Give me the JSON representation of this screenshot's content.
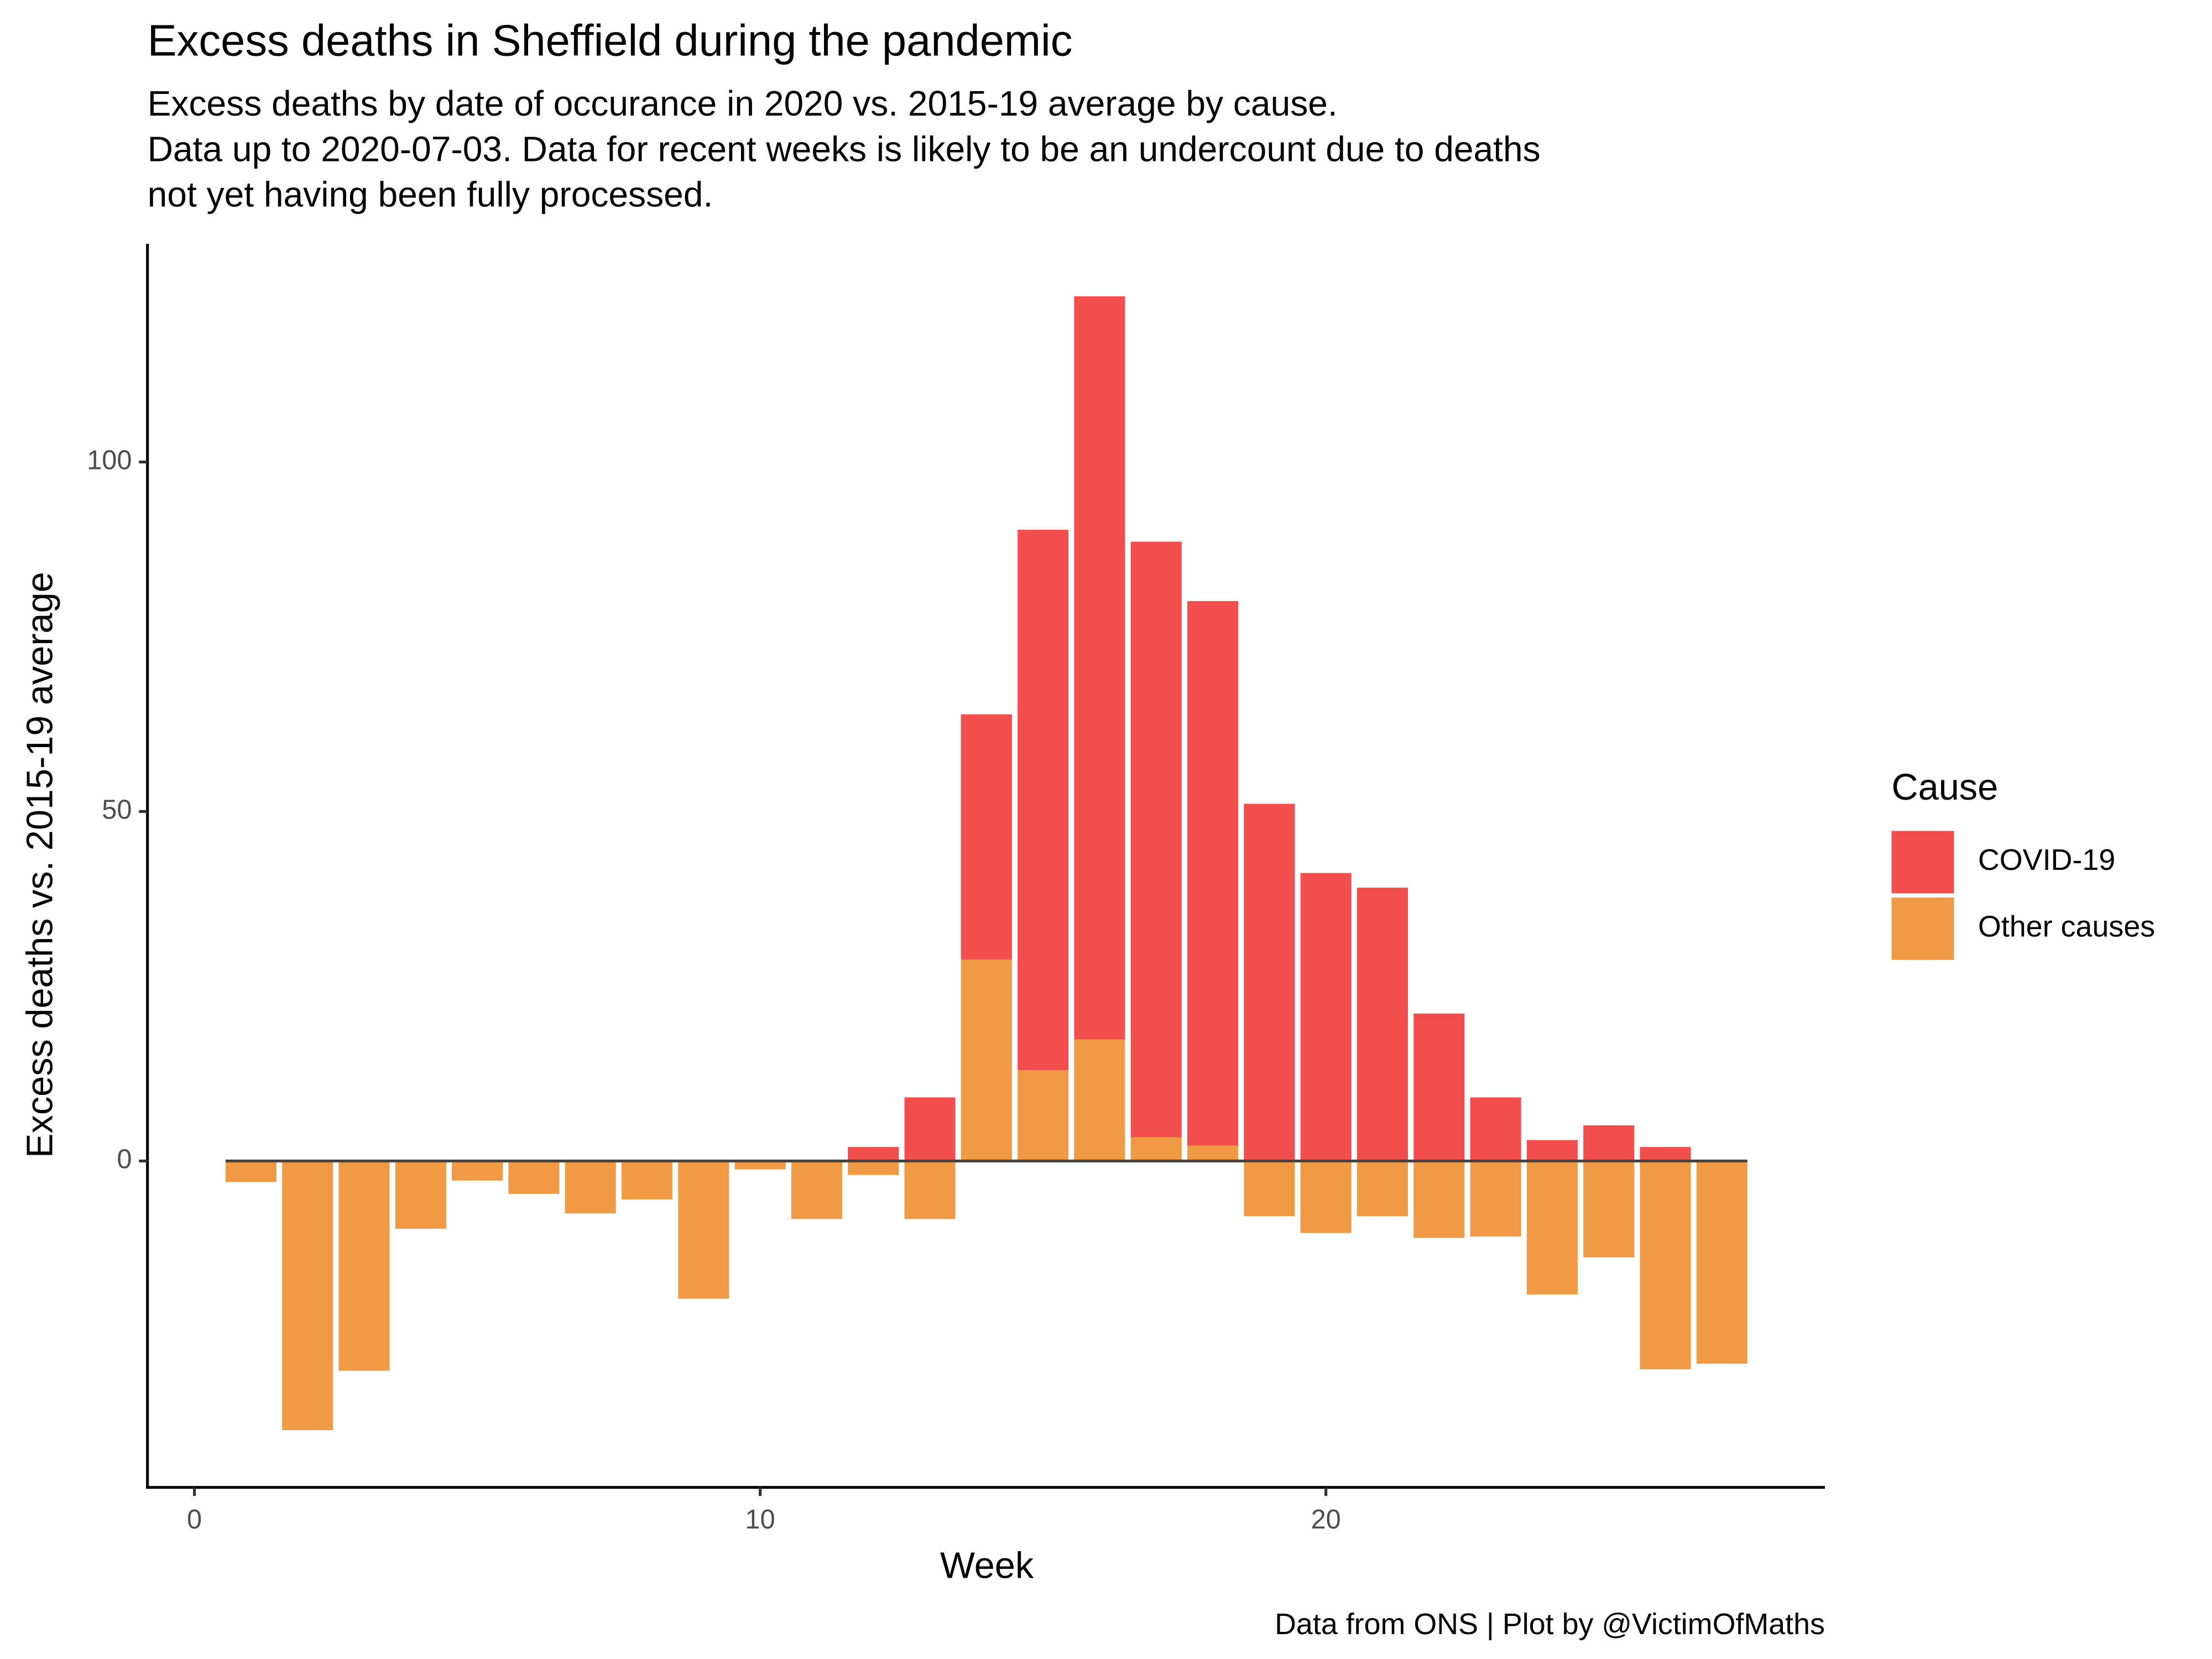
{
  "chart_data": {
    "type": "bar",
    "stacked": true,
    "title": "Excess deaths in Sheffield during the pandemic",
    "subtitle": [
      "Excess deaths by date of occurance in 2020 vs. 2015-19 average by cause.",
      "Data up to 2020-07-03. Data for recent weeks is likely to be an undercount due to deaths",
      "not yet having been fully processed."
    ],
    "x_label": "Week",
    "y_label": "Excess deaths vs. 2015-19 average",
    "caption": "Data from ONS | Plot by @VictimOfMaths",
    "legend_title": "Cause",
    "legend": "right",
    "x": [
      1,
      2,
      3,
      4,
      5,
      6,
      7,
      8,
      9,
      10,
      11,
      12,
      13,
      14,
      15,
      16,
      17,
      18,
      19,
      20,
      21,
      22,
      23,
      24,
      25,
      26,
      27
    ],
    "series": [
      {
        "name": "Other causes",
        "color": "#f19a45",
        "values": [
          -3,
          -38.5,
          -30,
          -9.7,
          -2.8,
          -4.7,
          -7.5,
          -5.5,
          -19.7,
          -1.2,
          -8.3,
          -2,
          -8.3,
          28.8,
          13,
          17.4,
          3.4,
          2.2,
          -7.9,
          -10.3,
          -7.9,
          -11,
          -10.8,
          -19.1,
          -13.8,
          -29.8,
          -29
        ]
      },
      {
        "name": "COVID-19",
        "color": "#f24e4e",
        "values": [
          0,
          0,
          0,
          0,
          0,
          0,
          0,
          0,
          0,
          0,
          0,
          2,
          9.1,
          35.1,
          77.3,
          106.3,
          85.2,
          77.9,
          51.1,
          41.2,
          39.1,
          21.1,
          9.1,
          3,
          5.1,
          2,
          0
        ]
      }
    ],
    "legend_order": [
      1,
      0
    ],
    "xlim": [
      -0.83,
      28.82
    ],
    "xticks": [
      0,
      10,
      20
    ],
    "ylim": [
      -46.7,
      131.2
    ],
    "yticks": [
      0,
      50,
      100
    ],
    "grid": false
  }
}
